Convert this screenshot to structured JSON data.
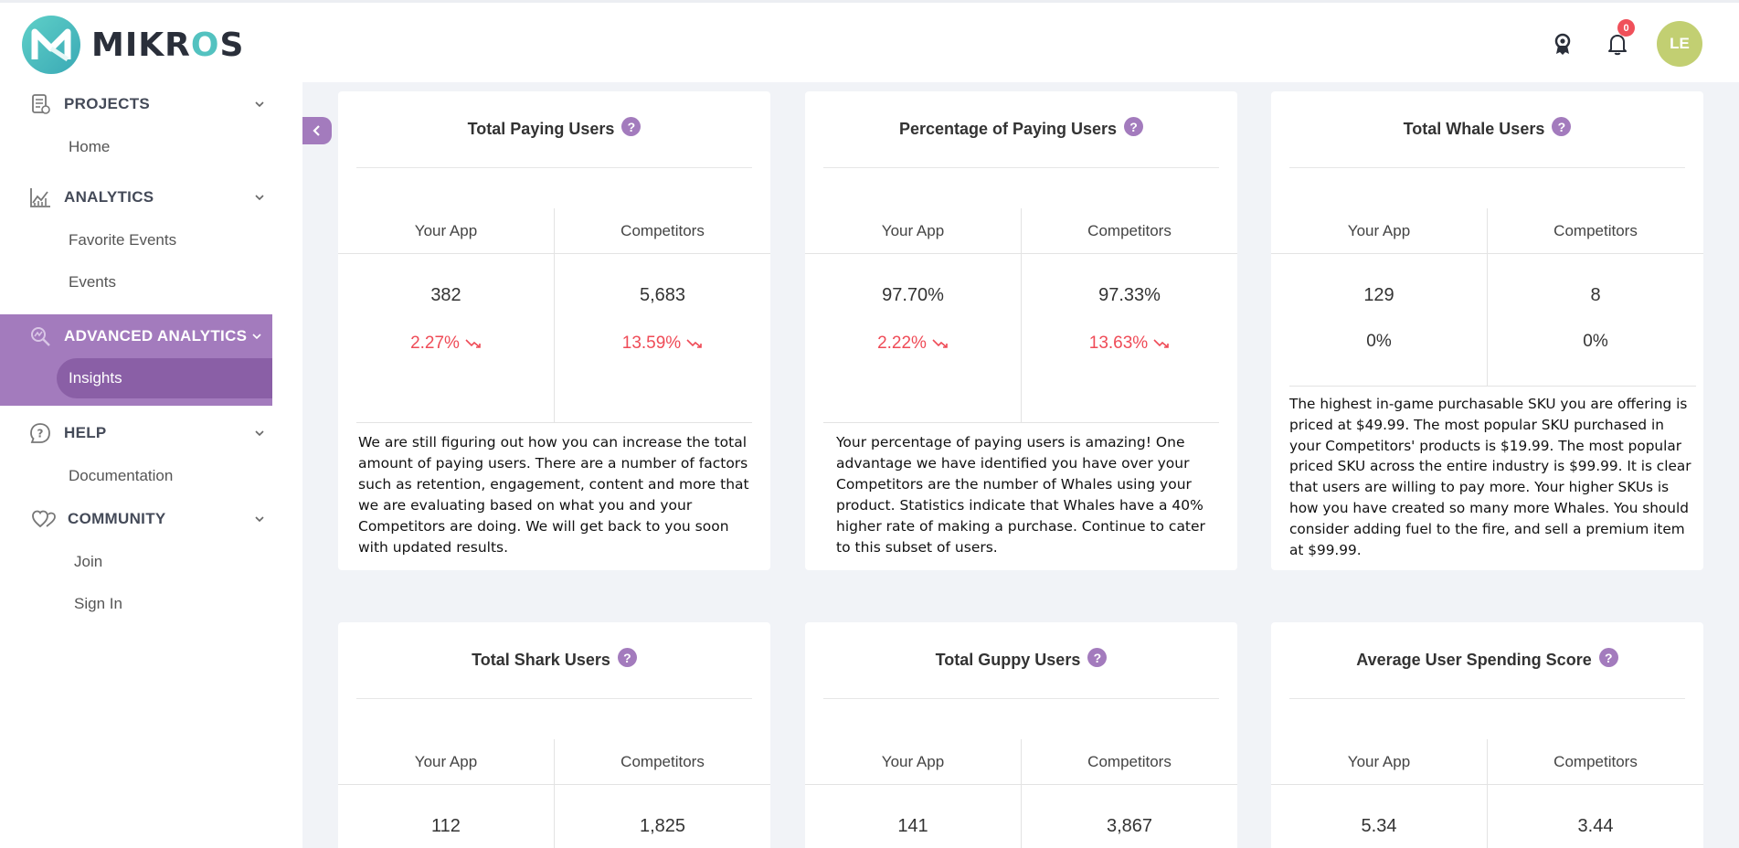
{
  "brand": {
    "name": "MIKROS"
  },
  "header": {
    "notification_count": "0",
    "avatar_initials": "LE"
  },
  "sidebar": {
    "sections": [
      {
        "label": "PROJECTS",
        "items": [
          "Home"
        ]
      },
      {
        "label": "ANALYTICS",
        "items": [
          "Favorite Events",
          "Events"
        ]
      },
      {
        "label": "ADVANCED ANALYTICS",
        "items": [
          "Insights"
        ]
      },
      {
        "label": "HELP",
        "items": [
          "Documentation"
        ]
      },
      {
        "label": "COMMUNITY",
        "items": [
          "Join",
          "Sign In"
        ]
      }
    ]
  },
  "cards": [
    {
      "title": "Total Paying Users",
      "col_labels": [
        "Your App",
        "Competitors"
      ],
      "your_app_value": "382",
      "competitors_value": "5,683",
      "your_app_change": "2.27%",
      "competitors_change": "13.59%",
      "description": "We are still figuring out how you can increase the total amount of paying users. There are a number of factors such as retention, engagement, content and more that we are evaluating based on what you and your Competitors are doing. We will get back to you soon with updated results."
    },
    {
      "title": "Percentage of Paying Users",
      "col_labels": [
        "Your App",
        "Competitors"
      ],
      "your_app_value": "97.70%",
      "competitors_value": "97.33%",
      "your_app_change": "2.22%",
      "competitors_change": "13.63%",
      "description": "Your percentage of paying users is amazing! One advantage we have identified you have over your Competitors are the number of Whales using your product. Statistics indicate that Whales have a 40% higher rate of making a purchase. Continue to cater to this subset of users."
    },
    {
      "title": "Total Whale Users",
      "col_labels": [
        "Your App",
        "Competitors"
      ],
      "your_app_value": "129",
      "competitors_value": "8",
      "your_app_change": "0%",
      "competitors_change": "0%",
      "description": "The highest in-game purchasable SKU you are offering is priced at $49.99. The most popular SKU purchased in your Competitors' products is $19.99. The most popular priced SKU across the entire industry is $99.99. It is clear that users are willing to pay more. Your higher SKUs is how you have created so many more Whales. You should consider adding fuel to the fire, and sell a premium item at $99.99."
    },
    {
      "title": "Total Shark Users",
      "col_labels": [
        "Your App",
        "Competitors"
      ],
      "your_app_value": "112",
      "competitors_value": "1,825"
    },
    {
      "title": "Total Guppy Users",
      "col_labels": [
        "Your App",
        "Competitors"
      ],
      "your_app_value": "141",
      "competitors_value": "3,867"
    },
    {
      "title": "Average User Spending Score",
      "col_labels": [
        "Your App",
        "Competitors"
      ],
      "your_app_value": "5.34",
      "competitors_value": "3.44"
    }
  ],
  "colors": {
    "accent": "#a37bbd",
    "accent_dark": "#8a5fa6",
    "negative": "#ef4b57",
    "avatar": "#c2cf72"
  }
}
